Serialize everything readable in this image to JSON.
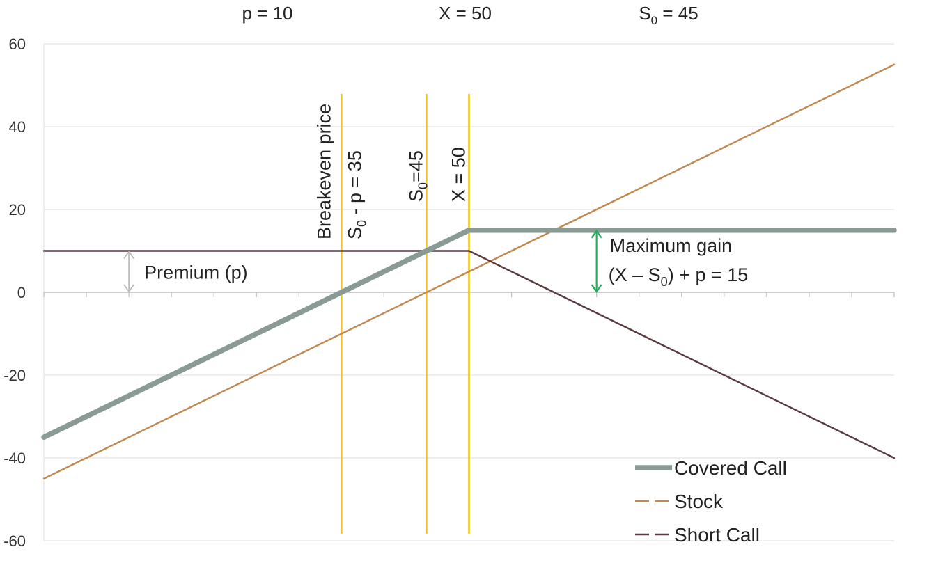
{
  "chart_data": {
    "type": "line",
    "title": "",
    "xlabel": "",
    "ylabel": "",
    "x": [
      0,
      50,
      100
    ],
    "xlim": [
      0,
      100
    ],
    "ylim": [
      -60,
      60
    ],
    "yticks": [
      -60,
      -40,
      -20,
      0,
      20,
      40,
      60
    ],
    "grid": "horizontal",
    "legend_position": "bottom-right",
    "params": {
      "premium": "p = 10",
      "strike": "X = 50",
      "spot_prefix": "S",
      "spot_sub": "0",
      "spot_suffix": " = 45"
    },
    "series": [
      {
        "name": "Covered Call",
        "color": "#8a9a95",
        "style": "solid-thick",
        "values": [
          -35,
          15,
          15
        ]
      },
      {
        "name": "Stock",
        "color": "#c08850",
        "style": "solid",
        "values": [
          -45,
          5,
          55
        ]
      },
      {
        "name": "Short Call",
        "color": "#5a3a3e",
        "style": "solid",
        "values": [
          10,
          10,
          -40
        ]
      }
    ],
    "vlines": [
      {
        "x": 35,
        "label_top": "Breakeven price",
        "label_prefix": "S",
        "label_sub": "0",
        "label_suffix": " - p = 35"
      },
      {
        "x": 45,
        "label_prefix": "S",
        "label_sub": "0",
        "label_suffix": "=45"
      },
      {
        "x": 50,
        "label": "X = 50"
      }
    ],
    "vline_color": "#f0c419",
    "annotations": {
      "premium": {
        "text": "Premium (p)",
        "from": 0,
        "to": 10,
        "x": 10
      },
      "max_gain": {
        "line1": "Maximum gain",
        "line2_prefix": "(X – S",
        "line2_sub": "0",
        "line2_suffix": ") + p = 15",
        "from": 0,
        "to": 15,
        "x": 65,
        "color": "#1fae5a"
      }
    }
  }
}
